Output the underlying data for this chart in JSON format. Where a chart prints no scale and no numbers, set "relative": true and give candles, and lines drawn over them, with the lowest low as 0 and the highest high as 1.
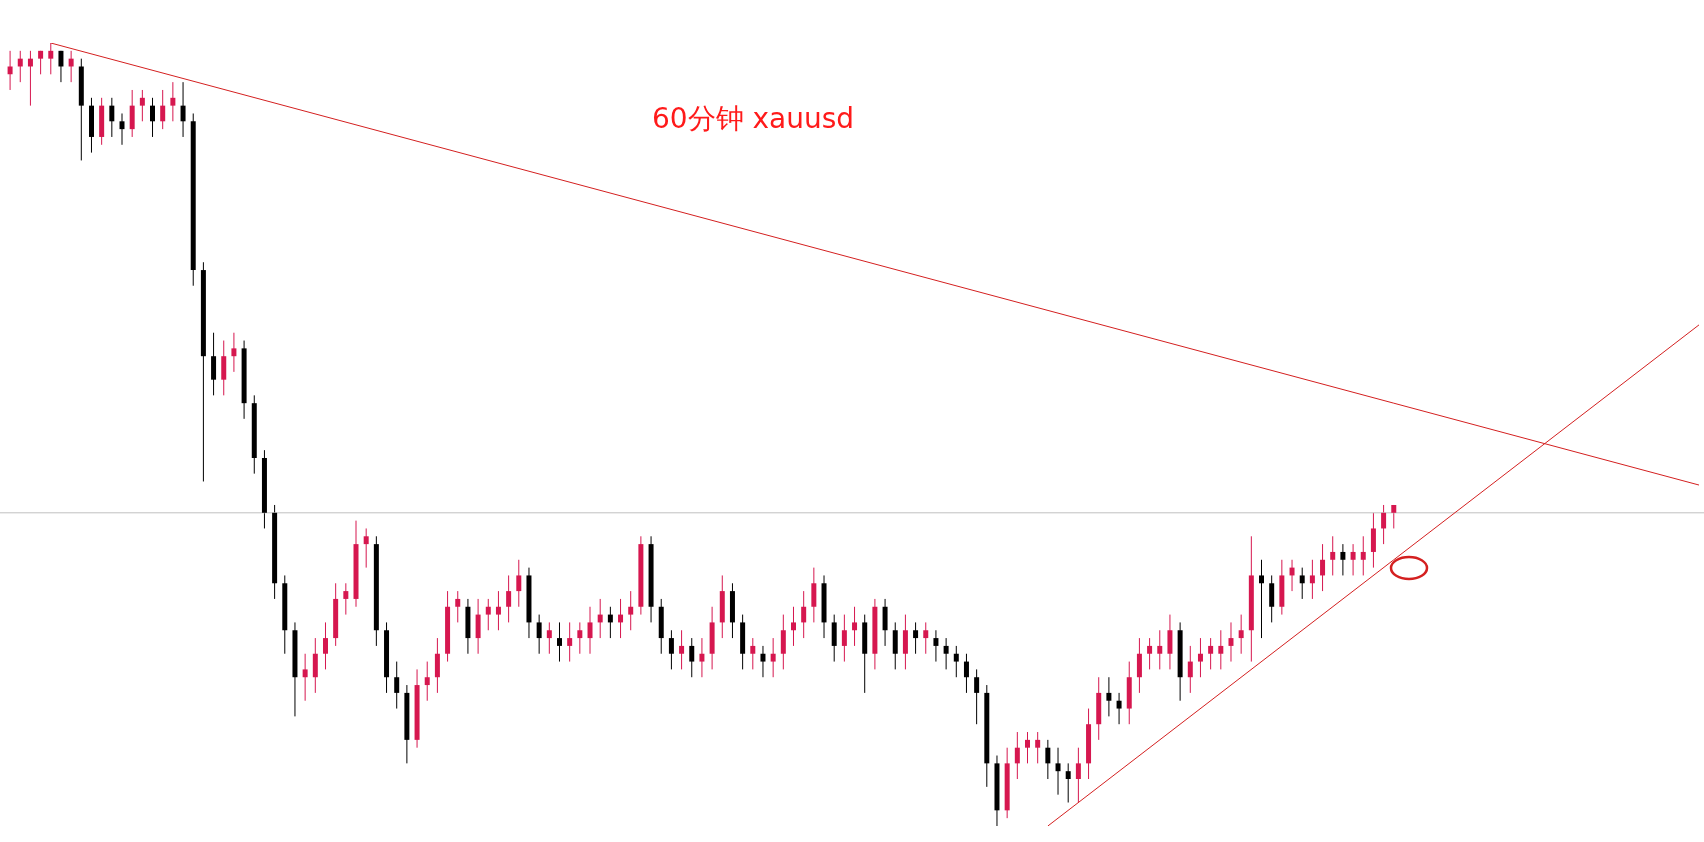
{
  "chart_data": {
    "type": "candlestick",
    "title": "60分钟  xauusd",
    "relative": true,
    "colors": [
      "#d6174f",
      "#d6174f",
      "#d6174f",
      "#d6174f",
      "#d6174f",
      "#000000",
      "#d6174f",
      "#000000",
      "#000000",
      "#d6174f",
      "#000000",
      "#000000",
      "#d6174f",
      "#d6174f",
      "#000000",
      "#d6174f",
      "#d6174f",
      "#000000",
      "#000000",
      "#000000",
      "#000000",
      "#d6174f",
      "#d6174f",
      "#000000",
      "#000000",
      "#000000",
      "#000000",
      "#000000",
      "#000000",
      "#d6174f",
      "#d6174f",
      "#d6174f",
      "#d6174f",
      "#d6174f",
      "#d6174f",
      "#d6174f",
      "#000000",
      "#000000",
      "#000000",
      "#000000",
      "#d6174f",
      "#d6174f",
      "#d6174f",
      "#d6174f",
      "#d6174f",
      "#000000",
      "#d6174f",
      "#d6174f",
      "#d6174f",
      "#d6174f",
      "#d6174f",
      "#000000",
      "#000000",
      "#d6174f",
      "#000000",
      "#d6174f",
      "#d6174f",
      "#d6174f",
      "#d6174f",
      "#000000",
      "#d6174f",
      "#d6174f",
      "#d6174f",
      "#000000",
      "#000000",
      "#000000",
      "#d6174f",
      "#000000",
      "#d6174f",
      "#d6174f",
      "#d6174f",
      "#000000",
      "#000000",
      "#d6174f",
      "#000000",
      "#d6174f",
      "#d6174f",
      "#d6174f",
      "#d6174f",
      "#d6174f",
      "#000000",
      "#000000",
      "#d6174f",
      "#d6174f",
      "#000000",
      "#d6174f",
      "#000000",
      "#000000",
      "#d6174f",
      "#000000",
      "#d6174f",
      "#000000",
      "#000000",
      "#000000",
      "#000000",
      "#000000",
      "#000000",
      "#000000",
      "#d6174f",
      "#d6174f",
      "#d6174f",
      "#d6174f",
      "#000000",
      "#000000",
      "#000000",
      "#d6174f",
      "#d6174f",
      "#d6174f",
      "#000000",
      "#000000",
      "#d6174f",
      "#d6174f",
      "#d6174f",
      "#d6174f",
      "#d6174f",
      "#000000",
      "#d6174f",
      "#d6174f",
      "#d6174f",
      "#d6174f",
      "#d6174f",
      "#d6174f",
      "#d6174f",
      "#000000",
      "#000000",
      "#d6174f",
      "#d6174f",
      "#000000",
      "#d6174f",
      "#d6174f",
      "#d6174f",
      "#000000",
      "#d6174f",
      "#d6174f",
      "#d6174f",
      "#d6174f",
      "#d6174f"
    ],
    "categories": [
      null,
      null,
      null,
      null,
      null,
      null,
      null,
      null,
      null,
      null,
      null,
      null,
      null,
      null,
      null,
      null,
      null,
      null,
      null,
      null,
      null,
      null,
      null,
      null,
      null,
      null,
      null,
      null,
      null,
      null,
      null,
      null,
      null,
      null,
      null,
      null,
      null,
      null,
      null,
      null,
      null,
      null,
      null,
      null,
      null,
      null,
      null,
      null,
      null,
      null,
      null,
      null,
      null,
      null,
      null,
      null,
      null,
      null,
      null,
      null,
      null,
      null,
      null,
      null,
      null,
      null,
      null,
      null,
      null,
      null,
      null,
      null,
      null,
      null,
      null,
      null,
      null,
      null,
      null,
      null,
      null,
      null,
      null,
      null,
      null,
      null,
      null,
      null,
      null,
      null,
      null,
      null,
      null,
      null,
      null,
      null,
      null,
      null,
      null,
      null,
      null,
      null,
      null,
      null,
      null,
      null,
      null,
      null,
      null,
      null,
      null,
      null,
      null,
      null,
      null,
      null,
      null,
      null,
      null,
      null,
      null,
      null,
      null,
      null,
      null,
      null,
      null,
      null,
      null,
      null,
      null,
      null,
      null,
      null,
      null,
      null,
      null
    ],
    "ohlc": [
      [
        0.96,
        0.99,
        0.94,
        0.97
      ],
      [
        0.97,
        0.99,
        0.95,
        0.98
      ],
      [
        0.97,
        0.99,
        0.92,
        0.98
      ],
      [
        0.98,
        0.99,
        0.96,
        0.99
      ],
      [
        0.98,
        1,
        0.96,
        0.99
      ],
      [
        0.99,
        0.99,
        0.95,
        0.97
      ],
      [
        0.97,
        0.99,
        0.95,
        0.98
      ],
      [
        0.97,
        0.98,
        0.85,
        0.92
      ],
      [
        0.92,
        0.93,
        0.86,
        0.88
      ],
      [
        0.88,
        0.93,
        0.87,
        0.92
      ],
      [
        0.92,
        0.93,
        0.88,
        0.9
      ],
      [
        0.9,
        0.91,
        0.87,
        0.89
      ],
      [
        0.89,
        0.94,
        0.88,
        0.92
      ],
      [
        0.92,
        0.94,
        0.9,
        0.93
      ],
      [
        0.92,
        0.93,
        0.88,
        0.9
      ],
      [
        0.9,
        0.94,
        0.89,
        0.92
      ],
      [
        0.92,
        0.95,
        0.9,
        0.93
      ],
      [
        0.92,
        0.95,
        0.88,
        0.9
      ],
      [
        0.9,
        0.91,
        0.69,
        0.71
      ],
      [
        0.71,
        0.72,
        0.44,
        0.6
      ],
      [
        0.6,
        0.63,
        0.55,
        0.57
      ],
      [
        0.57,
        0.62,
        0.55,
        0.6
      ],
      [
        0.6,
        0.63,
        0.58,
        0.61
      ],
      [
        0.61,
        0.62,
        0.52,
        0.54
      ],
      [
        0.54,
        0.55,
        0.45,
        0.47
      ],
      [
        0.47,
        0.48,
        0.38,
        0.4
      ],
      [
        0.4,
        0.41,
        0.29,
        0.31
      ],
      [
        0.31,
        0.32,
        0.22,
        0.25
      ],
      [
        0.25,
        0.26,
        0.14,
        0.19
      ],
      [
        0.19,
        0.22,
        0.16,
        0.2
      ],
      [
        0.19,
        0.24,
        0.17,
        0.22
      ],
      [
        0.22,
        0.26,
        0.2,
        0.24
      ],
      [
        0.24,
        0.31,
        0.23,
        0.29
      ],
      [
        0.29,
        0.31,
        0.27,
        0.3
      ],
      [
        0.29,
        0.39,
        0.28,
        0.36
      ],
      [
        0.36,
        0.38,
        0.33,
        0.37
      ],
      [
        0.36,
        0.37,
        0.23,
        0.25
      ],
      [
        0.25,
        0.26,
        0.17,
        0.19
      ],
      [
        0.19,
        0.21,
        0.15,
        0.17
      ],
      [
        0.17,
        0.18,
        0.08,
        0.11
      ],
      [
        0.11,
        0.2,
        0.1,
        0.18
      ],
      [
        0.18,
        0.21,
        0.16,
        0.19
      ],
      [
        0.19,
        0.24,
        0.17,
        0.22
      ],
      [
        0.22,
        0.3,
        0.21,
        0.28
      ],
      [
        0.28,
        0.3,
        0.26,
        0.29
      ],
      [
        0.28,
        0.29,
        0.22,
        0.24
      ],
      [
        0.24,
        0.29,
        0.22,
        0.27
      ],
      [
        0.27,
        0.29,
        0.25,
        0.28
      ],
      [
        0.27,
        0.3,
        0.25,
        0.28
      ],
      [
        0.28,
        0.32,
        0.26,
        0.3
      ],
      [
        0.3,
        0.34,
        0.28,
        0.32
      ],
      [
        0.32,
        0.33,
        0.24,
        0.26
      ],
      [
        0.26,
        0.27,
        0.22,
        0.24
      ],
      [
        0.24,
        0.26,
        0.22,
        0.25
      ],
      [
        0.24,
        0.26,
        0.21,
        0.23
      ],
      [
        0.23,
        0.26,
        0.21,
        0.24
      ],
      [
        0.24,
        0.26,
        0.22,
        0.25
      ],
      [
        0.24,
        0.28,
        0.22,
        0.26
      ],
      [
        0.26,
        0.29,
        0.24,
        0.27
      ],
      [
        0.27,
        0.28,
        0.24,
        0.26
      ],
      [
        0.26,
        0.29,
        0.24,
        0.27
      ],
      [
        0.27,
        0.3,
        0.25,
        0.28
      ],
      [
        0.28,
        0.37,
        0.27,
        0.36
      ],
      [
        0.36,
        0.37,
        0.26,
        0.28
      ],
      [
        0.28,
        0.29,
        0.22,
        0.24
      ],
      [
        0.24,
        0.25,
        0.2,
        0.22
      ],
      [
        0.22,
        0.25,
        0.2,
        0.23
      ],
      [
        0.23,
        0.24,
        0.19,
        0.21
      ],
      [
        0.21,
        0.24,
        0.19,
        0.22
      ],
      [
        0.22,
        0.28,
        0.2,
        0.26
      ],
      [
        0.26,
        0.32,
        0.24,
        0.3
      ],
      [
        0.3,
        0.31,
        0.24,
        0.26
      ],
      [
        0.26,
        0.27,
        0.2,
        0.22
      ],
      [
        0.22,
        0.24,
        0.2,
        0.23
      ],
      [
        0.22,
        0.23,
        0.19,
        0.21
      ],
      [
        0.21,
        0.24,
        0.19,
        0.22
      ],
      [
        0.22,
        0.27,
        0.2,
        0.25
      ],
      [
        0.25,
        0.28,
        0.23,
        0.26
      ],
      [
        0.26,
        0.3,
        0.24,
        0.28
      ],
      [
        0.28,
        0.33,
        0.26,
        0.31
      ],
      [
        0.31,
        0.32,
        0.24,
        0.26
      ],
      [
        0.26,
        0.27,
        0.21,
        0.23
      ],
      [
        0.23,
        0.27,
        0.21,
        0.25
      ],
      [
        0.25,
        0.28,
        0.23,
        0.26
      ],
      [
        0.26,
        0.27,
        0.17,
        0.22
      ],
      [
        0.22,
        0.29,
        0.2,
        0.28
      ],
      [
        0.28,
        0.29,
        0.23,
        0.25
      ],
      [
        0.25,
        0.26,
        0.2,
        0.22
      ],
      [
        0.22,
        0.27,
        0.2,
        0.25
      ],
      [
        0.25,
        0.26,
        0.22,
        0.24
      ],
      [
        0.24,
        0.26,
        0.22,
        0.25
      ],
      [
        0.24,
        0.25,
        0.21,
        0.23
      ],
      [
        0.23,
        0.24,
        0.2,
        0.22
      ],
      [
        0.22,
        0.23,
        0.19,
        0.21
      ],
      [
        0.21,
        0.22,
        0.17,
        0.19
      ],
      [
        0.19,
        0.2,
        0.13,
        0.17
      ],
      [
        0.17,
        0.18,
        0.05,
        0.08
      ],
      [
        0.08,
        0.09,
        0,
        0.02
      ],
      [
        0.02,
        0.1,
        0.01,
        0.08
      ],
      [
        0.08,
        0.12,
        0.06,
        0.1
      ],
      [
        0.1,
        0.12,
        0.08,
        0.11
      ],
      [
        0.1,
        0.12,
        0.08,
        0.11
      ],
      [
        0.1,
        0.11,
        0.06,
        0.08
      ],
      [
        0.08,
        0.1,
        0.04,
        0.07
      ],
      [
        0.07,
        0.08,
        0.03,
        0.06
      ],
      [
        0.06,
        0.1,
        0.03,
        0.08
      ],
      [
        0.08,
        0.15,
        0.06,
        0.13
      ],
      [
        0.13,
        0.19,
        0.11,
        0.17
      ],
      [
        0.17,
        0.19,
        0.14,
        0.16
      ],
      [
        0.16,
        0.17,
        0.13,
        0.15
      ],
      [
        0.15,
        0.21,
        0.13,
        0.19
      ],
      [
        0.19,
        0.24,
        0.17,
        0.22
      ],
      [
        0.22,
        0.24,
        0.2,
        0.23
      ],
      [
        0.22,
        0.25,
        0.2,
        0.23
      ],
      [
        0.22,
        0.27,
        0.2,
        0.25
      ],
      [
        0.25,
        0.26,
        0.16,
        0.19
      ],
      [
        0.19,
        0.23,
        0.17,
        0.21
      ],
      [
        0.21,
        0.24,
        0.19,
        0.22
      ],
      [
        0.22,
        0.24,
        0.2,
        0.23
      ],
      [
        0.22,
        0.25,
        0.2,
        0.23
      ],
      [
        0.23,
        0.26,
        0.21,
        0.24
      ],
      [
        0.24,
        0.27,
        0.22,
        0.25
      ],
      [
        0.25,
        0.37,
        0.21,
        0.32
      ],
      [
        0.32,
        0.34,
        0.24,
        0.31
      ],
      [
        0.31,
        0.32,
        0.26,
        0.28
      ],
      [
        0.28,
        0.34,
        0.27,
        0.32
      ],
      [
        0.32,
        0.34,
        0.3,
        0.33
      ],
      [
        0.32,
        0.33,
        0.29,
        0.31
      ],
      [
        0.31,
        0.34,
        0.29,
        0.32
      ],
      [
        0.32,
        0.36,
        0.3,
        0.34
      ],
      [
        0.34,
        0.37,
        0.32,
        0.35
      ],
      [
        0.35,
        0.36,
        0.32,
        0.34
      ],
      [
        0.34,
        0.36,
        0.32,
        0.35
      ],
      [
        0.34,
        0.37,
        0.32,
        0.35
      ],
      [
        0.35,
        0.4,
        0.33,
        0.38
      ],
      [
        0.38,
        0.41,
        0.36,
        0.4
      ],
      [
        0.4,
        0.41,
        0.38,
        0.41
      ]
    ],
    "series": [
      {
        "type": "line",
        "color": "#d42020",
        "values": [
          null,
          null,
          null,
          null,
          1,
          null,
          null,
          null,
          null,
          null,
          null,
          null,
          null,
          null,
          null,
          null,
          null,
          null,
          null,
          null,
          null,
          null,
          null,
          null,
          null,
          null,
          null,
          null,
          null,
          null,
          null,
          null,
          null,
          null,
          null,
          null,
          null,
          null,
          null,
          null,
          null,
          null,
          null,
          null,
          null,
          null,
          null,
          null,
          null,
          null,
          null,
          null,
          null,
          null,
          null,
          null,
          null,
          null,
          null,
          null,
          null,
          null,
          null,
          null,
          null,
          null,
          null,
          null,
          null,
          null,
          null,
          null,
          null,
          null,
          null,
          null,
          null,
          null,
          null,
          null,
          null,
          null,
          null,
          null,
          null,
          null,
          null,
          null,
          null,
          null,
          null,
          null,
          null,
          null,
          null,
          null,
          null,
          null,
          null,
          null,
          null,
          null,
          null,
          null,
          null,
          null,
          null,
          null,
          null,
          null,
          null,
          null,
          null,
          null,
          null,
          null,
          null,
          null,
          null,
          null,
          null,
          null,
          null,
          null,
          null,
          null,
          null,
          null,
          null,
          null,
          null,
          null,
          null,
          null,
          null,
          null,
          0.54
        ]
      },
      {
        "type": "line",
        "color": "#d42020",
        "values": [
          null,
          null,
          null,
          null,
          null,
          null,
          null,
          null,
          null,
          null,
          null,
          null,
          null,
          null,
          null,
          null,
          null,
          null,
          null,
          null,
          null,
          null,
          null,
          null,
          null,
          null,
          null,
          null,
          null,
          null,
          null,
          null,
          null,
          null,
          null,
          null,
          null,
          null,
          null,
          null,
          null,
          null,
          null,
          null,
          null,
          null,
          null,
          null,
          null,
          null,
          null,
          null,
          null,
          null,
          null,
          null,
          null,
          null,
          null,
          null,
          null,
          null,
          null,
          null,
          null,
          null,
          null,
          null,
          null,
          null,
          null,
          null,
          null,
          null,
          null,
          null,
          null,
          null,
          null,
          null,
          null,
          null,
          null,
          null,
          null,
          null,
          null,
          null,
          null,
          null,
          null,
          null,
          null,
          null,
          null,
          null,
          null,
          null,
          null,
          null,
          null,
          null,
          0,
          null,
          null,
          null,
          null,
          null,
          null,
          null,
          null,
          null,
          null,
          null,
          null,
          null,
          null,
          null,
          null,
          null,
          null,
          null,
          null,
          null,
          null,
          null,
          null,
          null,
          null,
          null,
          null,
          null,
          null,
          null,
          null,
          null,
          0.34
        ]
      }
    ],
    "ref_lines": [
      {
        "axis": "y",
        "value": 0.4,
        "color": "#c0c0c0"
      }
    ]
  }
}
